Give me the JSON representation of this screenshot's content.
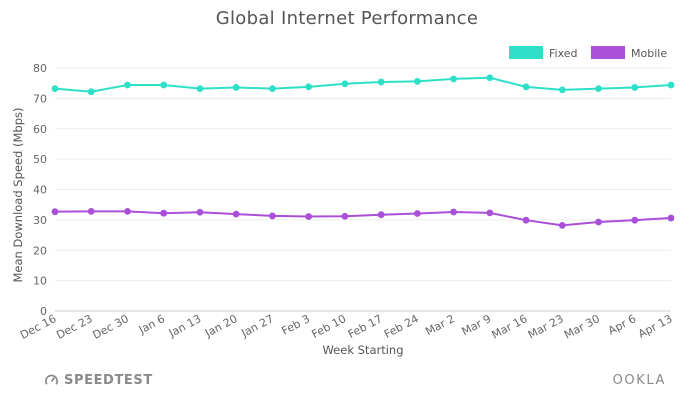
{
  "chart_data": {
    "type": "line",
    "title": "Global Internet Performance",
    "ylabel": "Mean Download Speed (Mbps)",
    "xlabel": "Week Starting",
    "ylim": [
      0,
      80
    ],
    "yticks": [
      0,
      10,
      20,
      30,
      40,
      50,
      60,
      70,
      80
    ],
    "grid": true,
    "legend_position": "top-right",
    "categories": [
      "Dec 16",
      "Dec 23",
      "Dec 30",
      "Jan 6",
      "Jan 13",
      "Jan 20",
      "Jan 27",
      "Feb 3",
      "Feb 10",
      "Feb 17",
      "Feb 24",
      "Mar 2",
      "Mar 9",
      "Mar 16",
      "Mar 23",
      "Mar 30",
      "Apr 6",
      "Apr 13"
    ],
    "series": [
      {
        "name": "Fixed",
        "color": "#2fe0c8",
        "values": [
          73.2,
          72.2,
          74.4,
          74.4,
          73.2,
          73.6,
          73.2,
          73.8,
          74.8,
          75.4,
          75.6,
          76.4,
          76.8,
          73.8,
          72.8,
          73.2,
          73.6,
          74.4
        ]
      },
      {
        "name": "Mobile",
        "color": "#a94fd8",
        "values": [
          32.7,
          32.8,
          32.8,
          32.2,
          32.5,
          31.9,
          31.3,
          31.1,
          31.2,
          31.7,
          32.1,
          32.6,
          32.3,
          29.9,
          28.2,
          29.3,
          29.9,
          30.6
        ]
      }
    ]
  },
  "footer": {
    "left_brand": "SPEEDTEST",
    "right_brand": "OOKLA"
  }
}
